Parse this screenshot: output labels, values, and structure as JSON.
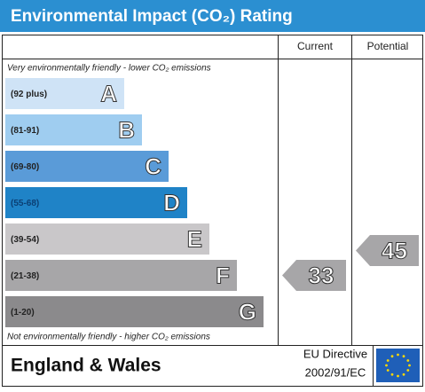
{
  "chart_data": {
    "type": "rating",
    "title": "Environmental Impact (CO₂) Rating",
    "columns": [
      "Current",
      "Potential"
    ],
    "top_note": "Very environmentally friendly - lower CO₂ emissions",
    "bottom_note": "Not environmentally friendly - higher CO₂ emissions",
    "bands": [
      {
        "range": "(92 plus)",
        "letter": "A",
        "color": "#cfe3f6"
      },
      {
        "range": "(81-91)",
        "letter": "B",
        "color": "#9fcdf0"
      },
      {
        "range": "(69-80)",
        "letter": "C",
        "color": "#5a9bd8"
      },
      {
        "range": "(55-68)",
        "letter": "D",
        "color": "#1f83c7"
      },
      {
        "range": "(39-54)",
        "letter": "E",
        "color": "#c9c7c9"
      },
      {
        "range": "(21-38)",
        "letter": "F",
        "color": "#a7a6a8"
      },
      {
        "range": "(1-20)",
        "letter": "G",
        "color": "#8b8a8c"
      }
    ],
    "current": 33,
    "potential": 45,
    "arrow_color": "#a7a6a8",
    "footer": {
      "region": "England & Wales",
      "directive": "EU Directive",
      "code": "2002/91/EC"
    }
  }
}
